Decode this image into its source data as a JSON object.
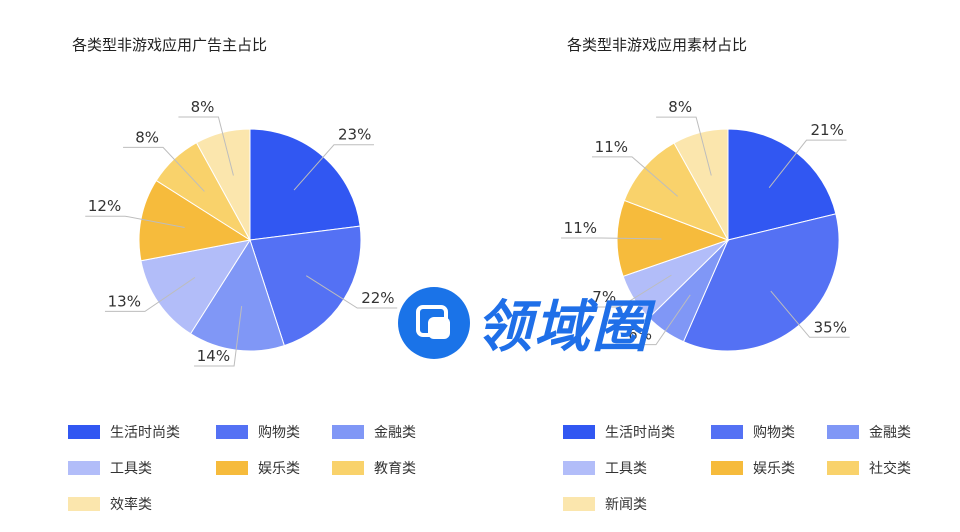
{
  "chart_data": [
    {
      "type": "pie",
      "title": "各类型非游戏应用广告主占比",
      "slices": [
        {
          "label": "生活时尚类",
          "value": 23,
          "display": "23%",
          "color": "#3157f2"
        },
        {
          "label": "购物类",
          "value": 22,
          "display": "22%",
          "color": "#5471f4"
        },
        {
          "label": "金融类",
          "value": 14,
          "display": "14%",
          "color": "#8097f6"
        },
        {
          "label": "工具类",
          "value": 13,
          "display": "13%",
          "color": "#b2bdf9"
        },
        {
          "label": "娱乐类",
          "value": 12,
          "display": "12%",
          "color": "#f6bb3c"
        },
        {
          "label": "教育类",
          "value": 8,
          "display": "8%",
          "color": "#f9d26b"
        },
        {
          "label": "效率类",
          "value": 8,
          "display": "8%",
          "color": "#fbe6ad"
        }
      ]
    },
    {
      "type": "pie",
      "title": "各类型非游戏应用素材占比",
      "slices": [
        {
          "label": "生活时尚类",
          "value": 21,
          "display": "21%",
          "color": "#3157f2"
        },
        {
          "label": "购物类",
          "value": 35,
          "display": "35%",
          "color": "#5471f4"
        },
        {
          "label": "金融类",
          "value": 6,
          "display": "6%",
          "color": "#8097f6"
        },
        {
          "label": "工具类",
          "value": 7,
          "display": "7%",
          "color": "#b2bdf9"
        },
        {
          "label": "娱乐类",
          "value": 11,
          "display": "11%",
          "color": "#f6bb3c"
        },
        {
          "label": "社交类",
          "value": 11,
          "display": "11%",
          "color": "#f9d26b"
        },
        {
          "label": "新闻类",
          "value": 8,
          "display": "8%",
          "color": "#fbe6ad"
        }
      ]
    }
  ],
  "watermark": {
    "text": "领域圈",
    "color": "#1f6fe8"
  }
}
